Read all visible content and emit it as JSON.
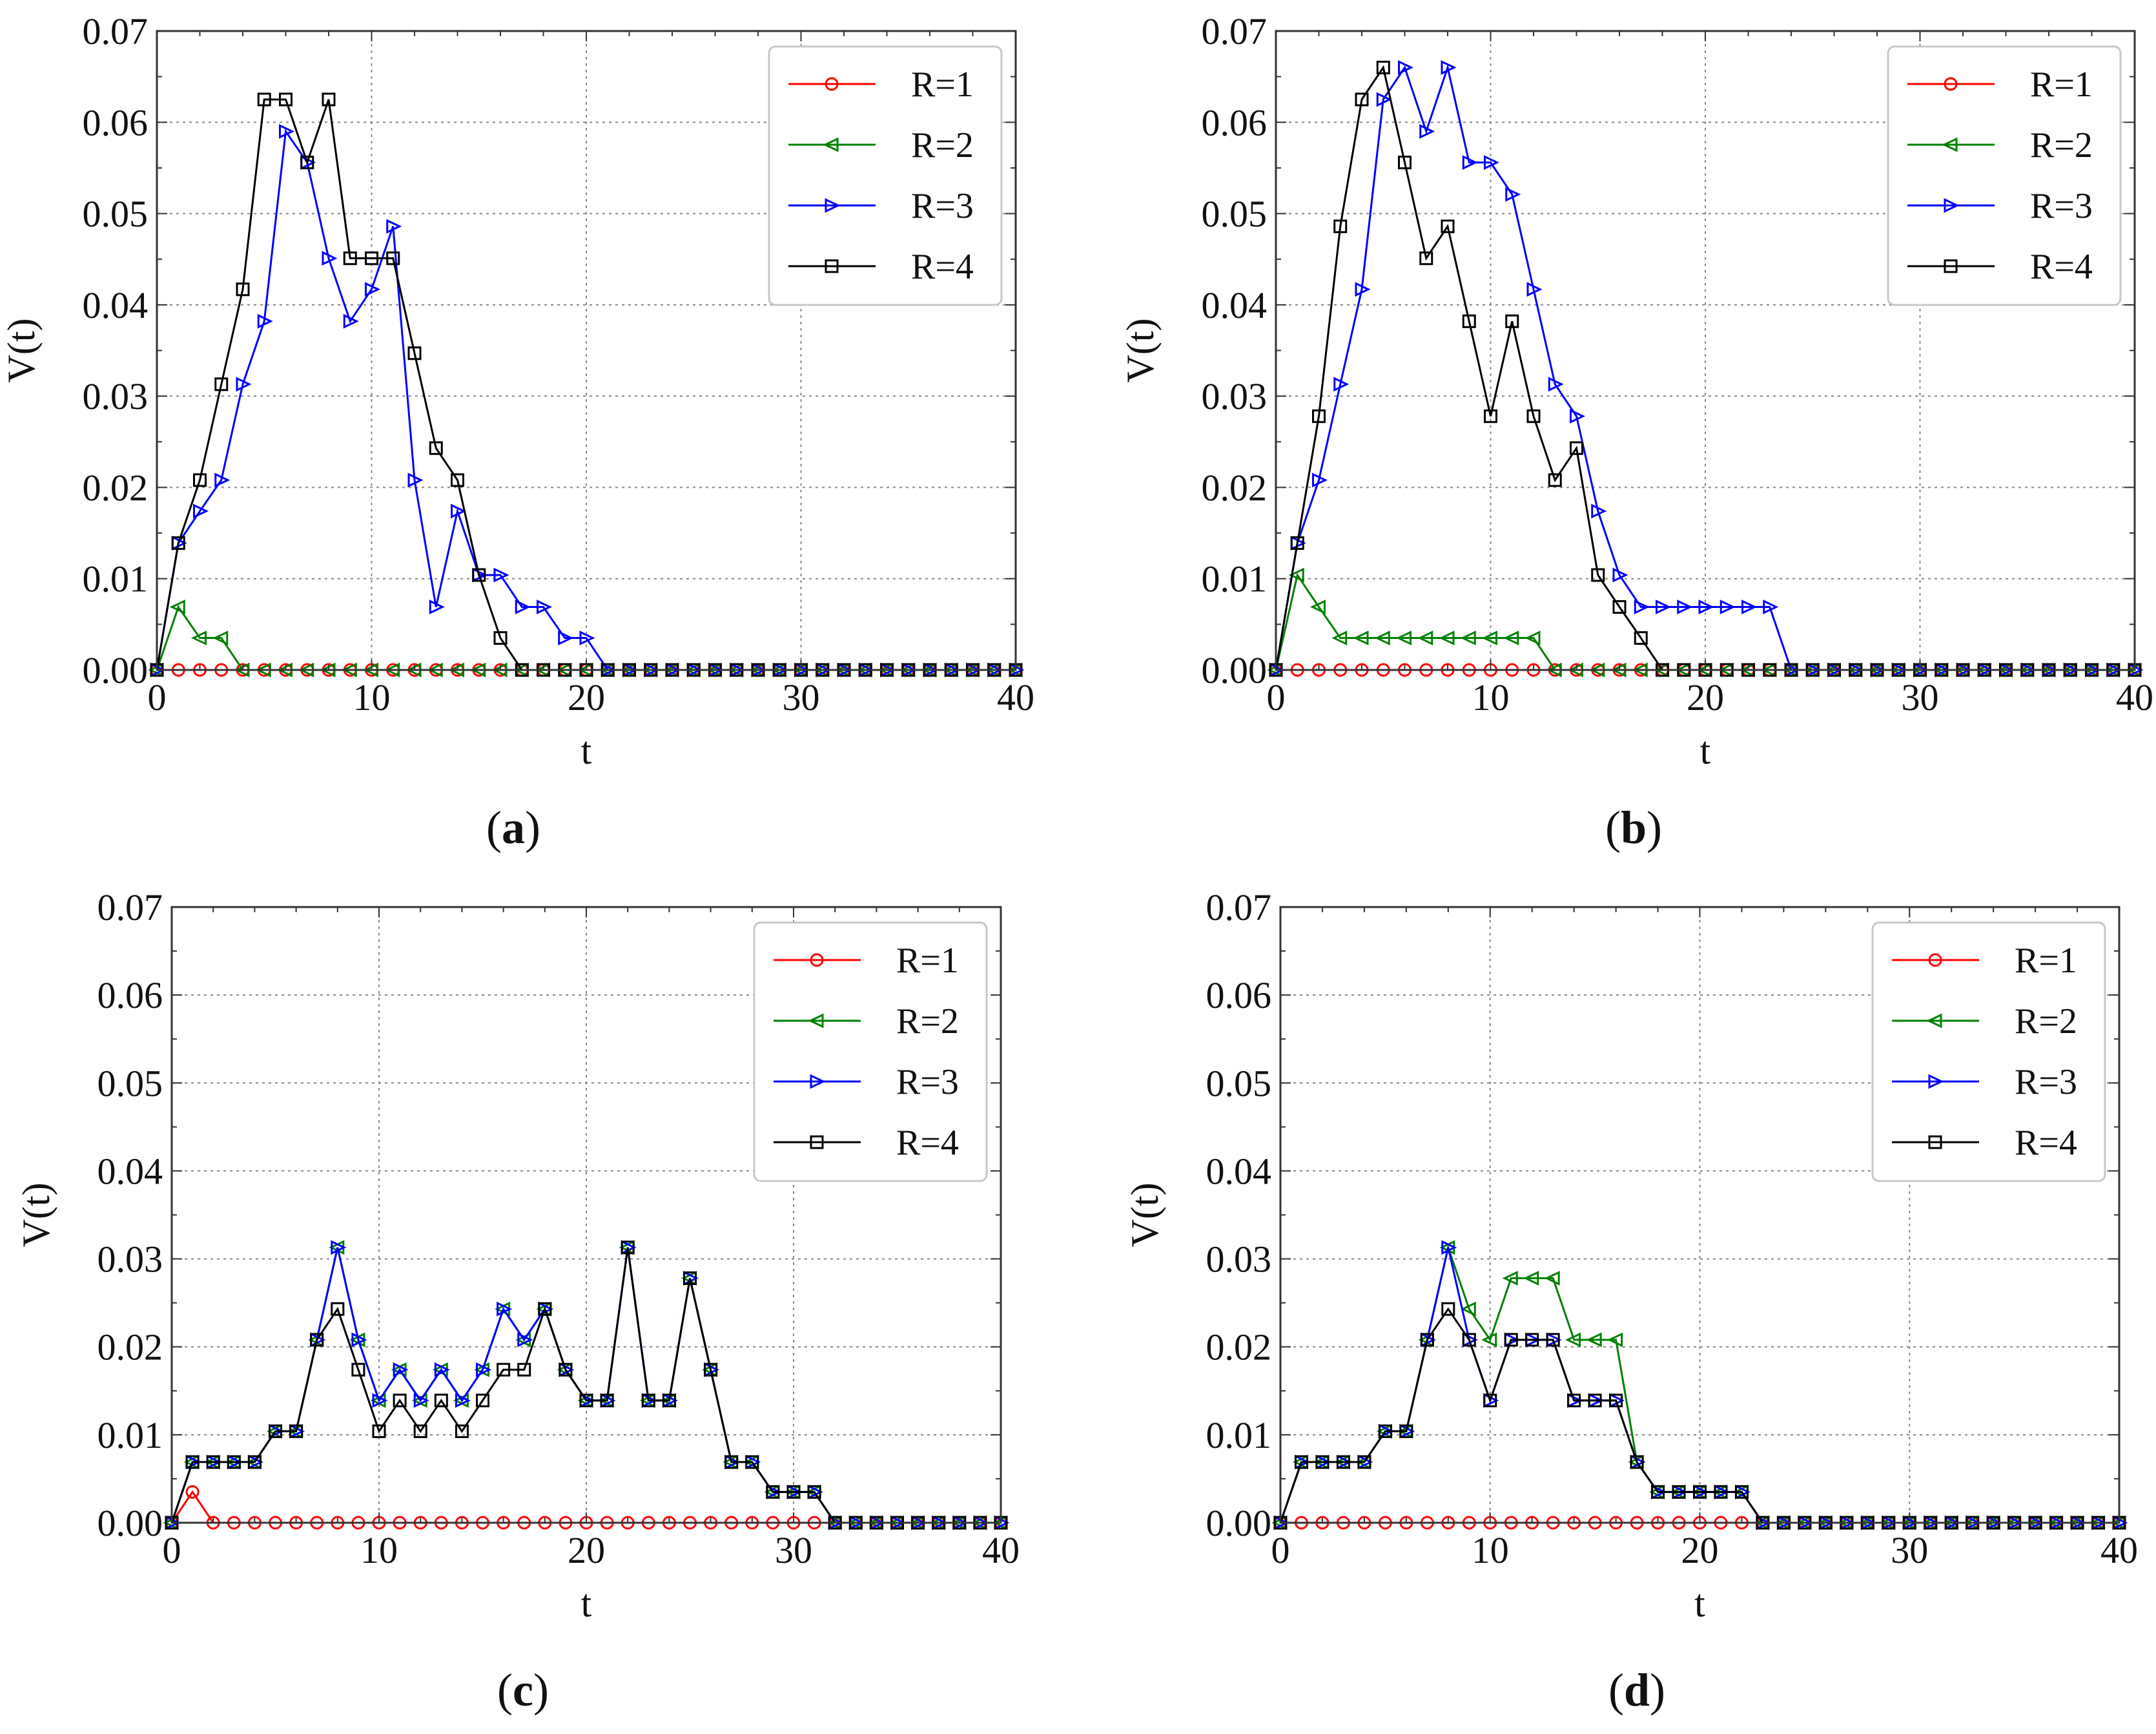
{
  "figure": {
    "colors": {
      "R=1": "#ff0000",
      "R=2": "#008000",
      "R=3": "#0000ff",
      "R=4": "#000000"
    },
    "markers": {
      "R=1": "circle",
      "R=2": "triangle-left",
      "R=3": "triangle-right",
      "R=4": "square"
    }
  },
  "chart_data": [
    {
      "panel": "a",
      "type": "line",
      "xlabel": "t",
      "ylabel": "V(t)",
      "xlim": [
        0,
        40
      ],
      "ylim": [
        0,
        0.07
      ],
      "xticks": [
        "0",
        "10",
        "20",
        "30",
        "40"
      ],
      "yticks": [
        "0.00",
        "0.01",
        "0.02",
        "0.03",
        "0.04",
        "0.05",
        "0.06",
        "0.07"
      ],
      "legend": {
        "location": "top-right",
        "labels": [
          "R=1",
          "R=2",
          "R=3",
          "R=4"
        ]
      },
      "grid": true,
      "x": [
        0,
        1,
        2,
        3,
        4,
        5,
        6,
        7,
        8,
        9,
        10,
        11,
        12,
        13,
        14,
        15,
        16,
        17,
        18,
        19,
        20,
        21,
        22,
        23,
        24,
        25,
        26,
        27,
        28,
        29,
        30,
        31,
        32,
        33,
        34,
        35,
        36,
        37,
        38,
        39,
        40
      ],
      "series": [
        {
          "name": "R=1",
          "values": [
            0,
            0,
            0,
            0,
            0,
            0,
            0,
            0,
            0,
            0,
            0,
            0,
            0,
            0,
            0,
            0,
            0,
            0,
            0,
            0,
            0,
            0,
            0,
            0,
            0,
            0,
            0,
            0,
            0,
            0,
            0,
            0,
            0,
            0,
            0,
            0,
            0,
            0,
            0,
            0,
            0
          ]
        },
        {
          "name": "R=2",
          "values": [
            0,
            0.0069,
            0.0035,
            0.0035,
            0,
            0,
            0,
            0,
            0,
            0,
            0,
            0,
            0,
            0,
            0,
            0,
            0,
            0,
            0,
            0,
            0,
            0,
            0,
            0,
            0,
            0,
            0,
            0,
            0,
            0,
            0,
            0,
            0,
            0,
            0,
            0,
            0,
            0,
            0,
            0,
            0
          ]
        },
        {
          "name": "R=3",
          "values": [
            0,
            0.0139,
            0.0174,
            0.0208,
            0.0313,
            0.0382,
            0.059,
            0.0556,
            0.0451,
            0.0382,
            0.0417,
            0.0486,
            0.0208,
            0.0069,
            0.0174,
            0.0104,
            0.0104,
            0.0069,
            0.0069,
            0.0035,
            0.0035,
            0,
            0,
            0,
            0,
            0,
            0,
            0,
            0,
            0,
            0,
            0,
            0,
            0,
            0,
            0,
            0,
            0,
            0,
            0,
            0
          ]
        },
        {
          "name": "R=4",
          "values": [
            0,
            0.0139,
            0.0208,
            0.0313,
            0.0417,
            0.0625,
            0.0625,
            0.0556,
            0.0625,
            0.0451,
            0.0451,
            0.0451,
            0.0347,
            0.0243,
            0.0208,
            0.0104,
            0.0035,
            0,
            0,
            0,
            0,
            0,
            0,
            0,
            0,
            0,
            0,
            0,
            0,
            0,
            0,
            0,
            0,
            0,
            0,
            0,
            0,
            0,
            0,
            0,
            0
          ]
        }
      ]
    },
    {
      "panel": "b",
      "type": "line",
      "xlabel": "t",
      "ylabel": "V(t)",
      "xlim": [
        0,
        40
      ],
      "ylim": [
        0,
        0.07
      ],
      "xticks": [
        "0",
        "10",
        "20",
        "30",
        "40"
      ],
      "yticks": [
        "0.00",
        "0.01",
        "0.02",
        "0.03",
        "0.04",
        "0.05",
        "0.06",
        "0.07"
      ],
      "legend": {
        "location": "top-right",
        "labels": [
          "R=1",
          "R=2",
          "R=3",
          "R=4"
        ]
      },
      "grid": true,
      "x": [
        0,
        1,
        2,
        3,
        4,
        5,
        6,
        7,
        8,
        9,
        10,
        11,
        12,
        13,
        14,
        15,
        16,
        17,
        18,
        19,
        20,
        21,
        22,
        23,
        24,
        25,
        26,
        27,
        28,
        29,
        30,
        31,
        32,
        33,
        34,
        35,
        36,
        37,
        38,
        39,
        40
      ],
      "series": [
        {
          "name": "R=1",
          "values": [
            0,
            0,
            0,
            0,
            0,
            0,
            0,
            0,
            0,
            0,
            0,
            0,
            0,
            0,
            0,
            0,
            0,
            0,
            0,
            0,
            0,
            0,
            0,
            0,
            0,
            0,
            0,
            0,
            0,
            0,
            0,
            0,
            0,
            0,
            0,
            0,
            0,
            0,
            0,
            0,
            0
          ]
        },
        {
          "name": "R=2",
          "values": [
            0,
            0.0104,
            0.0069,
            0.0035,
            0.0035,
            0.0035,
            0.0035,
            0.0035,
            0.0035,
            0.0035,
            0.0035,
            0.0035,
            0.0035,
            0,
            0,
            0,
            0,
            0,
            0,
            0,
            0,
            0,
            0,
            0,
            0,
            0,
            0,
            0,
            0,
            0,
            0,
            0,
            0,
            0,
            0,
            0,
            0,
            0,
            0,
            0,
            0
          ]
        },
        {
          "name": "R=3",
          "values": [
            0,
            0.0139,
            0.0208,
            0.0313,
            0.0417,
            0.0625,
            0.066,
            0.059,
            0.066,
            0.0556,
            0.0556,
            0.0521,
            0.0417,
            0.0313,
            0.0278,
            0.0174,
            0.0104,
            0.0069,
            0.0069,
            0.0069,
            0.0069,
            0.0069,
            0.0069,
            0.0069,
            0,
            0,
            0,
            0,
            0,
            0,
            0,
            0,
            0,
            0,
            0,
            0,
            0,
            0,
            0,
            0,
            0
          ]
        },
        {
          "name": "R=4",
          "values": [
            0,
            0.0139,
            0.0278,
            0.0486,
            0.0625,
            0.066,
            0.0556,
            0.0451,
            0.0486,
            0.0382,
            0.0278,
            0.0382,
            0.0278,
            0.0208,
            0.0243,
            0.0104,
            0.0069,
            0.0035,
            0,
            0,
            0,
            0,
            0,
            0,
            0,
            0,
            0,
            0,
            0,
            0,
            0,
            0,
            0,
            0,
            0,
            0,
            0,
            0,
            0,
            0,
            0
          ]
        }
      ]
    },
    {
      "panel": "c",
      "type": "line",
      "xlabel": "t",
      "ylabel": "V(t)",
      "xlim": [
        0,
        40
      ],
      "ylim": [
        0,
        0.07
      ],
      "xticks": [
        "0",
        "10",
        "20",
        "30",
        "40"
      ],
      "yticks": [
        "0.00",
        "0.01",
        "0.02",
        "0.03",
        "0.04",
        "0.05",
        "0.06",
        "0.07"
      ],
      "legend": {
        "location": "top-right",
        "labels": [
          "R=1",
          "R=2",
          "R=3",
          "R=4"
        ]
      },
      "grid": true,
      "x": [
        0,
        1,
        2,
        3,
        4,
        5,
        6,
        7,
        8,
        9,
        10,
        11,
        12,
        13,
        14,
        15,
        16,
        17,
        18,
        19,
        20,
        21,
        22,
        23,
        24,
        25,
        26,
        27,
        28,
        29,
        30,
        31,
        32,
        33,
        34,
        35,
        36,
        37,
        38,
        39,
        40
      ],
      "series": [
        {
          "name": "R=1",
          "values": [
            0,
            0.0035,
            0,
            0,
            0,
            0,
            0,
            0,
            0,
            0,
            0,
            0,
            0,
            0,
            0,
            0,
            0,
            0,
            0,
            0,
            0,
            0,
            0,
            0,
            0,
            0,
            0,
            0,
            0,
            0,
            0,
            0,
            0,
            0,
            0,
            0,
            0,
            0,
            0,
            0,
            0
          ]
        },
        {
          "name": "R=2",
          "values": [
            0,
            0.0069,
            0.0069,
            0.0069,
            0.0069,
            0.0104,
            0.0104,
            0.0208,
            0.0313,
            0.0208,
            0.0139,
            0.0174,
            0.0139,
            0.0174,
            0.0139,
            0.0174,
            0.0243,
            0.0208,
            0.0243,
            0.0174,
            0.0139,
            0.0139,
            0.0313,
            0.0139,
            0.0139,
            0.0278,
            0.0174,
            0.0069,
            0.0069,
            0.0035,
            0.0035,
            0.0035,
            0,
            0,
            0,
            0,
            0,
            0,
            0,
            0,
            0
          ]
        },
        {
          "name": "R=3",
          "values": [
            0,
            0.0069,
            0.0069,
            0.0069,
            0.0069,
            0.0104,
            0.0104,
            0.0208,
            0.0313,
            0.0208,
            0.0139,
            0.0174,
            0.0139,
            0.0174,
            0.0139,
            0.0174,
            0.0243,
            0.0208,
            0.0243,
            0.0174,
            0.0139,
            0.0139,
            0.0313,
            0.0139,
            0.0139,
            0.0278,
            0.0174,
            0.0069,
            0.0069,
            0.0035,
            0.0035,
            0.0035,
            0,
            0,
            0,
            0,
            0,
            0,
            0,
            0,
            0
          ]
        },
        {
          "name": "R=4",
          "values": [
            0,
            0.0069,
            0.0069,
            0.0069,
            0.0069,
            0.0104,
            0.0104,
            0.0208,
            0.0243,
            0.0174,
            0.0104,
            0.0139,
            0.0104,
            0.0139,
            0.0104,
            0.0139,
            0.0174,
            0.0174,
            0.0243,
            0.0174,
            0.0139,
            0.0139,
            0.0313,
            0.0139,
            0.0139,
            0.0278,
            0.0174,
            0.0069,
            0.0069,
            0.0035,
            0.0035,
            0.0035,
            0,
            0,
            0,
            0,
            0,
            0,
            0,
            0,
            0
          ]
        }
      ]
    },
    {
      "panel": "d",
      "type": "line",
      "xlabel": "t",
      "ylabel": "V(t)",
      "xlim": [
        0,
        40
      ],
      "ylim": [
        0,
        0.07
      ],
      "xticks": [
        "0",
        "10",
        "20",
        "30",
        "40"
      ],
      "yticks": [
        "0.00",
        "0.01",
        "0.02",
        "0.03",
        "0.04",
        "0.05",
        "0.06",
        "0.07"
      ],
      "legend": {
        "location": "top-right",
        "labels": [
          "R=1",
          "R=2",
          "R=3",
          "R=4"
        ]
      },
      "grid": true,
      "x": [
        0,
        1,
        2,
        3,
        4,
        5,
        6,
        7,
        8,
        9,
        10,
        11,
        12,
        13,
        14,
        15,
        16,
        17,
        18,
        19,
        20,
        21,
        22,
        23,
        24,
        25,
        26,
        27,
        28,
        29,
        30,
        31,
        32,
        33,
        34,
        35,
        36,
        37,
        38,
        39,
        40
      ],
      "series": [
        {
          "name": "R=1",
          "values": [
            0,
            0,
            0,
            0,
            0,
            0,
            0,
            0,
            0,
            0,
            0,
            0,
            0,
            0,
            0,
            0,
            0,
            0,
            0,
            0,
            0,
            0,
            0,
            0,
            0,
            0,
            0,
            0,
            0,
            0,
            0,
            0,
            0,
            0,
            0,
            0,
            0,
            0,
            0,
            0,
            0
          ]
        },
        {
          "name": "R=2",
          "values": [
            0,
            0.0069,
            0.0069,
            0.0069,
            0.0069,
            0.0104,
            0.0104,
            0.0208,
            0.0313,
            0.0243,
            0.0208,
            0.0278,
            0.0278,
            0.0278,
            0.0208,
            0.0208,
            0.0208,
            0.0069,
            0.0035,
            0.0035,
            0.0035,
            0.0035,
            0.0035,
            0,
            0,
            0,
            0,
            0,
            0,
            0,
            0,
            0,
            0,
            0,
            0,
            0,
            0,
            0,
            0,
            0,
            0
          ]
        },
        {
          "name": "R=3",
          "values": [
            0,
            0.0069,
            0.0069,
            0.0069,
            0.0069,
            0.0104,
            0.0104,
            0.0208,
            0.0313,
            0.0208,
            0.0139,
            0.0208,
            0.0208,
            0.0208,
            0.0139,
            0.0139,
            0.0139,
            0.0069,
            0.0035,
            0.0035,
            0.0035,
            0.0035,
            0.0035,
            0,
            0,
            0,
            0,
            0,
            0,
            0,
            0,
            0,
            0,
            0,
            0,
            0,
            0,
            0,
            0,
            0,
            0
          ]
        },
        {
          "name": "R=4",
          "values": [
            0,
            0.0069,
            0.0069,
            0.0069,
            0.0069,
            0.0104,
            0.0104,
            0.0208,
            0.0243,
            0.0208,
            0.0139,
            0.0208,
            0.0208,
            0.0208,
            0.0139,
            0.0139,
            0.0139,
            0.0069,
            0.0035,
            0.0035,
            0.0035,
            0.0035,
            0.0035,
            0,
            0,
            0,
            0,
            0,
            0,
            0,
            0,
            0,
            0,
            0,
            0,
            0,
            0,
            0,
            0,
            0,
            0
          ]
        }
      ]
    }
  ]
}
